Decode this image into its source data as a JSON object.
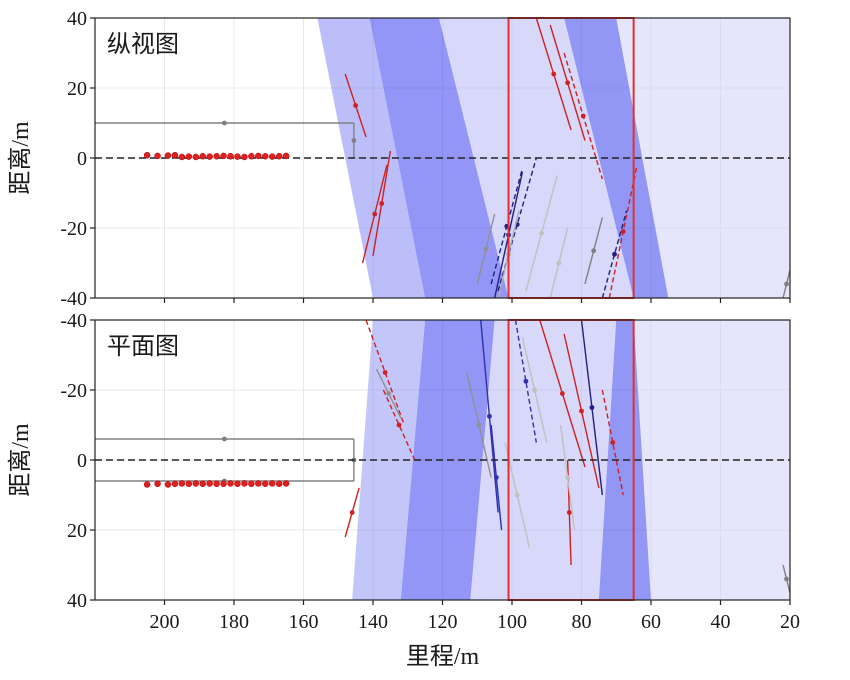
{
  "chart_data": [
    {
      "type": "line",
      "panel": "top",
      "title": "纵视图",
      "xlabel": "里程/m",
      "ylabel": "距离/m",
      "xlim": [
        220,
        20
      ],
      "ylim": [
        -40,
        40
      ],
      "xticks": [
        200,
        180,
        160,
        140,
        120,
        100,
        80,
        60,
        40,
        20
      ],
      "yticks": [
        40,
        20,
        0,
        -20,
        -40
      ],
      "y_inverted": false,
      "grid": true,
      "zero_line": 0,
      "region_box": {
        "x": [
          101,
          65
        ],
        "y": [
          -40,
          40
        ],
        "color": "#e03030"
      },
      "bands": [
        {
          "x": [
            [
              156,
              40
            ],
            [
              140,
              -40
            ],
            [
              125,
              -40
            ],
            [
              141,
              40
            ]
          ],
          "color": "#6a6ff2",
          "opacity": 0.45
        },
        {
          "x": [
            [
              141,
              40
            ],
            [
              125,
              -40
            ],
            [
              101,
              -40
            ],
            [
              121,
              40
            ]
          ],
          "color": "#3a40ee",
          "opacity": 0.55
        },
        {
          "x": [
            [
              121,
              40
            ],
            [
              101,
              -40
            ],
            [
              65,
              -40
            ],
            [
              85,
              40
            ]
          ],
          "color": "#b6b8f6",
          "opacity": 0.55
        },
        {
          "x": [
            [
              85,
              40
            ],
            [
              65,
              -40
            ],
            [
              55,
              -40
            ],
            [
              70,
              40
            ]
          ],
          "color": "#4a50ee",
          "opacity": 0.6
        },
        {
          "x": [
            [
              70,
              40
            ],
            [
              55,
              -40
            ],
            [
              20,
              -40
            ],
            [
              20,
              40
            ]
          ],
          "color": "#d0d2fa",
          "opacity": 0.55
        }
      ],
      "series": [
        {
          "x": [
            205,
            202,
            199,
            197,
            195,
            193,
            191,
            189,
            187,
            185,
            183,
            181,
            179,
            177,
            175,
            173,
            171,
            169,
            167,
            165
          ],
          "y": [
            0.8,
            0.6,
            0.7,
            0.8,
            0.3,
            0.4,
            0.3,
            0.5,
            0.4,
            0.5,
            0.6,
            0.5,
            0.4,
            0.3,
            0.5,
            0.6,
            0.5,
            0.4,
            0.5,
            0.6
          ],
          "color": "#e02020",
          "marker": "circle"
        }
      ],
      "segments": [
        {
          "x": [
            220,
            145.5
          ],
          "y": [
            10,
            10
          ],
          "color": "#808080"
        },
        {
          "x": [
            145.5,
            145.5
          ],
          "y": [
            10,
            0
          ],
          "color": "#808080"
        },
        {
          "x": [
            148,
            142
          ],
          "y": [
            24,
            6
          ],
          "color": "#d02020"
        },
        {
          "x": [
            143,
            136
          ],
          "y": [
            -30,
            -2
          ],
          "color": "#d02020"
        },
        {
          "x": [
            140,
            135
          ],
          "y": [
            -28,
            2
          ],
          "color": "#d02020"
        },
        {
          "x": [
            106,
            97
          ],
          "y": [
            -36,
            -3
          ],
          "color": "#202080",
          "dash": true
        },
        {
          "x": [
            104,
            93
          ],
          "y": [
            -38,
            0
          ],
          "color": "#202080",
          "dash": true
        },
        {
          "x": [
            105,
            97
          ],
          "y": [
            -40,
            -4
          ],
          "color": "#202080"
        },
        {
          "x": [
            93,
            83
          ],
          "y": [
            40,
            8
          ],
          "color": "#d02020"
        },
        {
          "x": [
            89,
            79
          ],
          "y": [
            38,
            5
          ],
          "color": "#d02020"
        },
        {
          "x": [
            85,
            74
          ],
          "y": [
            30,
            -6
          ],
          "color": "#d02020",
          "dash": true
        },
        {
          "x": [
            74,
            67
          ],
          "y": [
            -40,
            -15
          ],
          "color": "#202080",
          "dash": true
        },
        {
          "x": [
            72,
            64
          ],
          "y": [
            -40,
            -2
          ],
          "color": "#d02020",
          "dash": true
        },
        {
          "x": [
            110,
            105
          ],
          "y": [
            -36,
            -16
          ],
          "color": "#909090"
        },
        {
          "x": [
            104,
            98
          ],
          "y": [
            -40,
            -15
          ],
          "color": "#b0b0b0"
        },
        {
          "x": [
            96,
            87
          ],
          "y": [
            -38,
            -5
          ],
          "color": "#c0c0c0"
        },
        {
          "x": [
            89,
            84
          ],
          "y": [
            -40,
            -20
          ],
          "color": "#c0c0c0"
        },
        {
          "x": [
            79,
            74
          ],
          "y": [
            -36,
            -17
          ],
          "color": "#808080"
        },
        {
          "x": [
            22,
            20
          ],
          "y": [
            -40,
            -32
          ],
          "color": "#808080"
        }
      ]
    },
    {
      "type": "line",
      "panel": "bottom",
      "title": "平面图",
      "xlabel": "里程/m",
      "ylabel": "距离/m",
      "xlim": [
        220,
        20
      ],
      "ylim": [
        -40,
        40
      ],
      "xticks": [
        200,
        180,
        160,
        140,
        120,
        100,
        80,
        60,
        40,
        20
      ],
      "yticks": [
        -40,
        -20,
        0,
        20,
        40
      ],
      "y_inverted": true,
      "grid": true,
      "zero_line": 0,
      "region_box": {
        "x": [
          101,
          65
        ],
        "y": [
          -40,
          40
        ],
        "color": "#e03030"
      },
      "bands": [
        {
          "x": [
            [
              140,
              -40
            ],
            [
              146,
              40
            ],
            [
              132,
              40
            ],
            [
              125,
              -40
            ]
          ],
          "color": "#7a80f2",
          "opacity": 0.45
        },
        {
          "x": [
            [
              125,
              -40
            ],
            [
              132,
              40
            ],
            [
              112,
              40
            ],
            [
              105,
              -40
            ]
          ],
          "color": "#3a40ee",
          "opacity": 0.55
        },
        {
          "x": [
            [
              105,
              -40
            ],
            [
              112,
              40
            ],
            [
              75,
              40
            ],
            [
              70,
              -40
            ]
          ],
          "color": "#b6b8f6",
          "opacity": 0.55
        },
        {
          "x": [
            [
              70,
              -40
            ],
            [
              75,
              40
            ],
            [
              60,
              40
            ],
            [
              65,
              -40
            ]
          ],
          "color": "#4a50ee",
          "opacity": 0.6
        },
        {
          "x": [
            [
              65,
              -40
            ],
            [
              60,
              40
            ],
            [
              20,
              40
            ],
            [
              20,
              -40
            ]
          ],
          "color": "#d0d2fa",
          "opacity": 0.55
        }
      ],
      "series": [
        {
          "x": [
            205,
            202,
            199,
            197,
            195,
            193,
            191,
            189,
            187,
            185,
            183,
            181,
            179,
            177,
            175,
            173,
            171,
            169,
            167,
            165
          ],
          "y": [
            7.0,
            6.8,
            7.0,
            6.8,
            6.7,
            6.8,
            6.7,
            6.8,
            6.7,
            6.8,
            6.8,
            6.7,
            6.8,
            6.7,
            6.8,
            6.7,
            6.8,
            6.7,
            6.8,
            6.7
          ],
          "color": "#e02020",
          "marker": "circle"
        }
      ],
      "segments": [
        {
          "x": [
            220,
            145.5
          ],
          "y": [
            -6,
            -6
          ],
          "color": "#808080"
        },
        {
          "x": [
            220,
            145.5
          ],
          "y": [
            6,
            6
          ],
          "color": "#808080"
        },
        {
          "x": [
            145.5,
            145.5
          ],
          "y": [
            -6,
            6
          ],
          "color": "#808080"
        },
        {
          "x": [
            142,
            131
          ],
          "y": [
            -40,
            -10
          ],
          "color": "#d02020",
          "dash": true
        },
        {
          "x": [
            137,
            128
          ],
          "y": [
            -20,
            0
          ],
          "color": "#d02020",
          "dash": true
        },
        {
          "x": [
            148,
            144
          ],
          "y": [
            22,
            8
          ],
          "color": "#d02020"
        },
        {
          "x": [
            109,
            104
          ],
          "y": [
            -40,
            15
          ],
          "color": "#3030b0"
        },
        {
          "x": [
            106,
            103
          ],
          "y": [
            -10,
            20
          ],
          "color": "#3030b0"
        },
        {
          "x": [
            99,
            93
          ],
          "y": [
            -40,
            -5
          ],
          "color": "#3030b0",
          "dash": true
        },
        {
          "x": [
            92,
            79
          ],
          "y": [
            -40,
            2
          ],
          "color": "#d02020"
        },
        {
          "x": [
            85,
            75
          ],
          "y": [
            -36,
            8
          ],
          "color": "#d02020"
        },
        {
          "x": [
            80,
            74
          ],
          "y": [
            -40,
            10
          ],
          "color": "#202080"
        },
        {
          "x": [
            74,
            68
          ],
          "y": [
            -20,
            10
          ],
          "color": "#d02020",
          "dash": true
        },
        {
          "x": [
            84,
            83
          ],
          "y": [
            0,
            30
          ],
          "color": "#d02020"
        },
        {
          "x": [
            113,
            106
          ],
          "y": [
            -25,
            5
          ],
          "color": "#909090"
        },
        {
          "x": [
            139,
            132
          ],
          "y": [
            -26,
            -12
          ],
          "color": "#909090"
        },
        {
          "x": [
            102,
            95
          ],
          "y": [
            -5,
            25
          ],
          "color": "#c0c0c0"
        },
        {
          "x": [
            97,
            90
          ],
          "y": [
            -35,
            -5
          ],
          "color": "#c0c0c0"
        },
        {
          "x": [
            86,
            82
          ],
          "y": [
            -10,
            20
          ],
          "color": "#c0c0c0"
        },
        {
          "x": [
            22,
            20
          ],
          "y": [
            30,
            38
          ],
          "color": "#808080"
        }
      ]
    }
  ]
}
